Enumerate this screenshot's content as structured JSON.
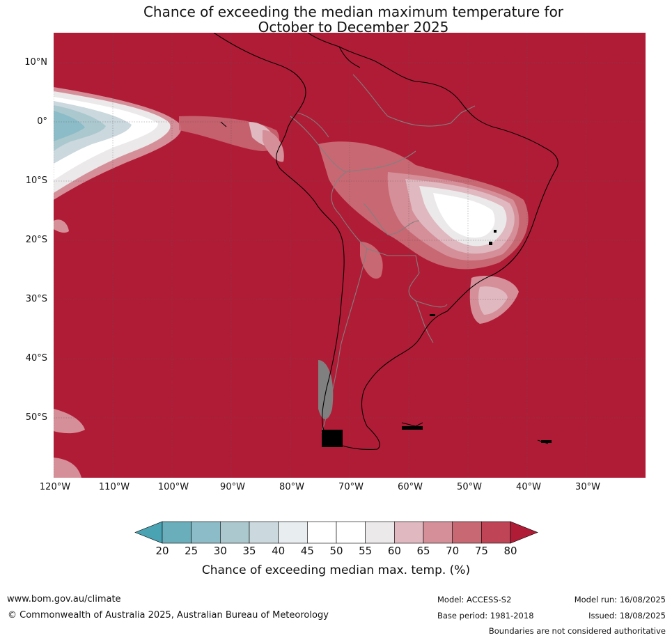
{
  "title": {
    "line1": "Chance of exceeding the median maximum temperature for",
    "line2": "October to December 2025"
  },
  "map": {
    "region": "South America and adjacent Pacific/Atlantic",
    "lat_labels": [
      "10°N",
      "0°",
      "10°S",
      "20°S",
      "30°S",
      "40°S",
      "50°S"
    ],
    "lon_labels": [
      "120°W",
      "110°W",
      "100°W",
      "90°W",
      "80°W",
      "70°W",
      "60°W",
      "50°W",
      "40°W",
      "30°W"
    ],
    "background_color": "#b01c36",
    "coast_color": "#000000",
    "border_color": "#808080"
  },
  "colorbar": {
    "ticks": [
      "20",
      "25",
      "30",
      "35",
      "40",
      "45",
      "50",
      "55",
      "60",
      "65",
      "70",
      "75",
      "80"
    ],
    "colors": [
      "#4aa3b3",
      "#6aaebb",
      "#8cbcc7",
      "#abc8cf",
      "#cbd8de",
      "#e8eef0",
      "#ffffff",
      "#ffffff",
      "#ebe9ea",
      "#e0b8bf",
      "#d58f99",
      "#c86873",
      "#bf4556",
      "#b01c36"
    ],
    "label": "Chance of exceeding median max. temp. (%)"
  },
  "footer": {
    "website": "www.bom.gov.au/climate",
    "copyright": "© Commonwealth of Australia 2025, Australian Bureau of Meteorology",
    "model": "Model: ACCESS-S2",
    "base_period": "Base period: 1981-2018",
    "model_run": "Model run: 16/08/2025",
    "issued": "Issued: 18/08/2025",
    "disclaimer": "Boundaries are not considered authoritative"
  }
}
